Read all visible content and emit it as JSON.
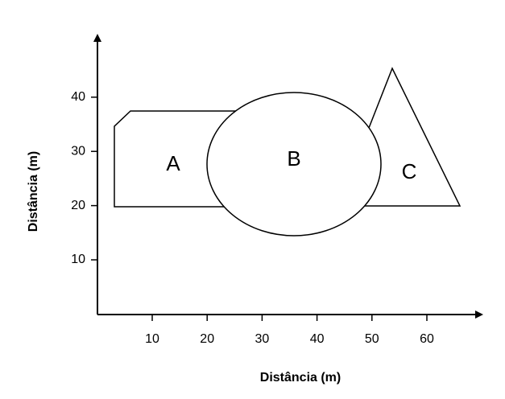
{
  "x_axis": {
    "label": "Distância (m)",
    "ticks": [
      "10",
      "20",
      "30",
      "40",
      "50",
      "60"
    ]
  },
  "y_axis": {
    "label": "Distância (m)",
    "ticks": [
      "10",
      "20",
      "30",
      "40"
    ]
  },
  "shapes": [
    {
      "label": "A"
    },
    {
      "label": "B"
    },
    {
      "label": "C"
    }
  ]
}
